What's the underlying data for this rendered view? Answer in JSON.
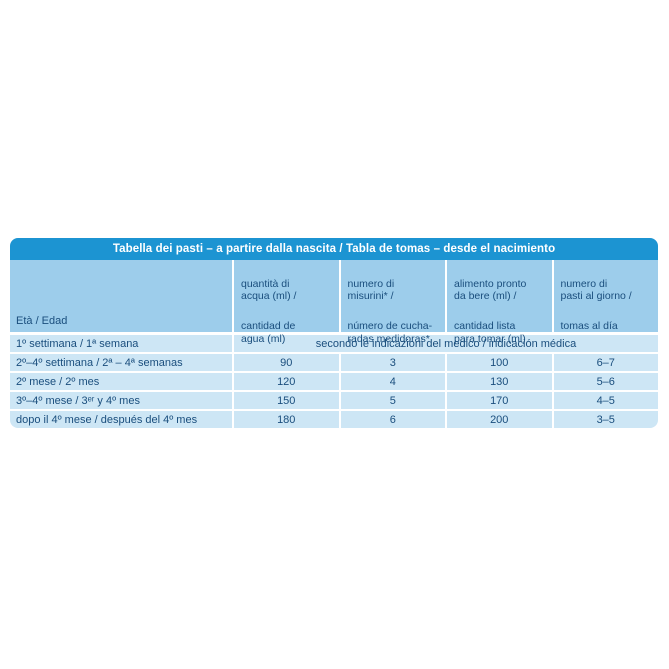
{
  "page": {
    "background_color": "#ffffff"
  },
  "feeding_table": {
    "title": "Tabella dei pasti – a partire dalla nascita / Tabla de tomas – desde el nacimiento",
    "colors": {
      "title_bar_bg": "#1c94d2",
      "title_text": "#ffffff",
      "header_bg": "#9dcdeb",
      "row_bg": "#cde6f5",
      "body_text": "#1a4e7d",
      "grid_separator": "#ffffff"
    },
    "header": {
      "age_label": "Età / Edad",
      "columns": [
        {
          "it": "quantità di\nacqua (ml) /",
          "es": "cantidad de\nagua (ml)"
        },
        {
          "it": "numero di\nmisurini* /",
          "es": "número de cucha-\nradas medidoras*"
        },
        {
          "it": "alimento pronto\nda bere (ml) /",
          "es": "cantidad lista\npara tomar (ml)"
        },
        {
          "it": "numero di\npasti al giorno /",
          "es": "tomas al día"
        }
      ]
    },
    "rows": [
      {
        "label": "1º settimana / 1ª semana",
        "merged": "secondo le indicazioni del medico / indicación médica"
      },
      {
        "label": "2º–4º settimana / 2ª – 4ª semanas",
        "values": [
          "90",
          "3",
          "100",
          "6–7"
        ]
      },
      {
        "label": "2º mese / 2º mes",
        "values": [
          "120",
          "4",
          "130",
          "5–6"
        ]
      },
      {
        "label": "3º–4º mese / 3ᵉʳ y 4º mes",
        "values": [
          "150",
          "5",
          "170",
          "4–5"
        ]
      },
      {
        "label": "dopo il 4º mese / después del 4º mes",
        "values": [
          "180",
          "6",
          "200",
          "3–5"
        ]
      }
    ]
  }
}
